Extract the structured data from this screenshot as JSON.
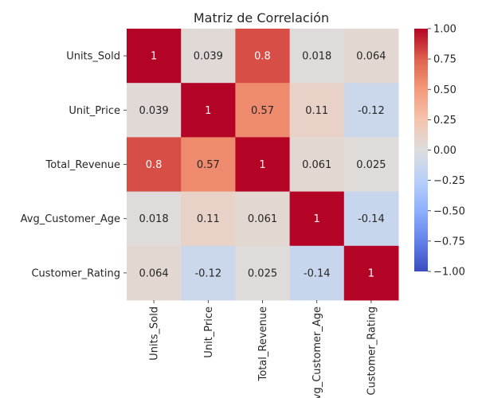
{
  "chart_data": {
    "type": "heatmap",
    "title": "Matriz de Correlación",
    "rows": [
      "Units_Sold",
      "Unit_Price",
      "Total_Revenue",
      "Avg_Customer_Age",
      "Customer_Rating"
    ],
    "columns": [
      "Units_Sold",
      "Unit_Price",
      "Total_Revenue",
      "Avg_Customer_Age",
      "Customer_Rating"
    ],
    "values": [
      [
        1,
        0.039,
        0.8,
        0.018,
        0.064
      ],
      [
        0.039,
        1,
        0.57,
        0.11,
        -0.12
      ],
      [
        0.8,
        0.57,
        1,
        0.061,
        0.025
      ],
      [
        0.018,
        0.11,
        0.061,
        1,
        -0.14
      ],
      [
        0.064,
        -0.12,
        0.025,
        -0.14,
        1
      ]
    ],
    "value_labels": [
      [
        "1",
        "0.039",
        "0.8",
        "0.018",
        "0.064"
      ],
      [
        "0.039",
        "1",
        "0.57",
        "0.11",
        "-0.12"
      ],
      [
        "0.8",
        "0.57",
        "1",
        "0.061",
        "0.025"
      ],
      [
        "0.018",
        "0.11",
        "0.061",
        "1",
        "-0.14"
      ],
      [
        "0.064",
        "-0.12",
        "0.025",
        "-0.14",
        "1"
      ]
    ],
    "colormap": "coolwarm",
    "vmin": -1,
    "vmax": 1,
    "colorbar_ticks": [
      -1.0,
      -0.75,
      -0.5,
      -0.25,
      0.0,
      0.25,
      0.5,
      0.75,
      1.0
    ],
    "colorbar_tick_labels": [
      "−1.00",
      "−0.75",
      "−0.50",
      "−0.25",
      "0.00",
      "0.25",
      "0.50",
      "0.75",
      "1.00"
    ],
    "xlabel": "",
    "ylabel": ""
  }
}
